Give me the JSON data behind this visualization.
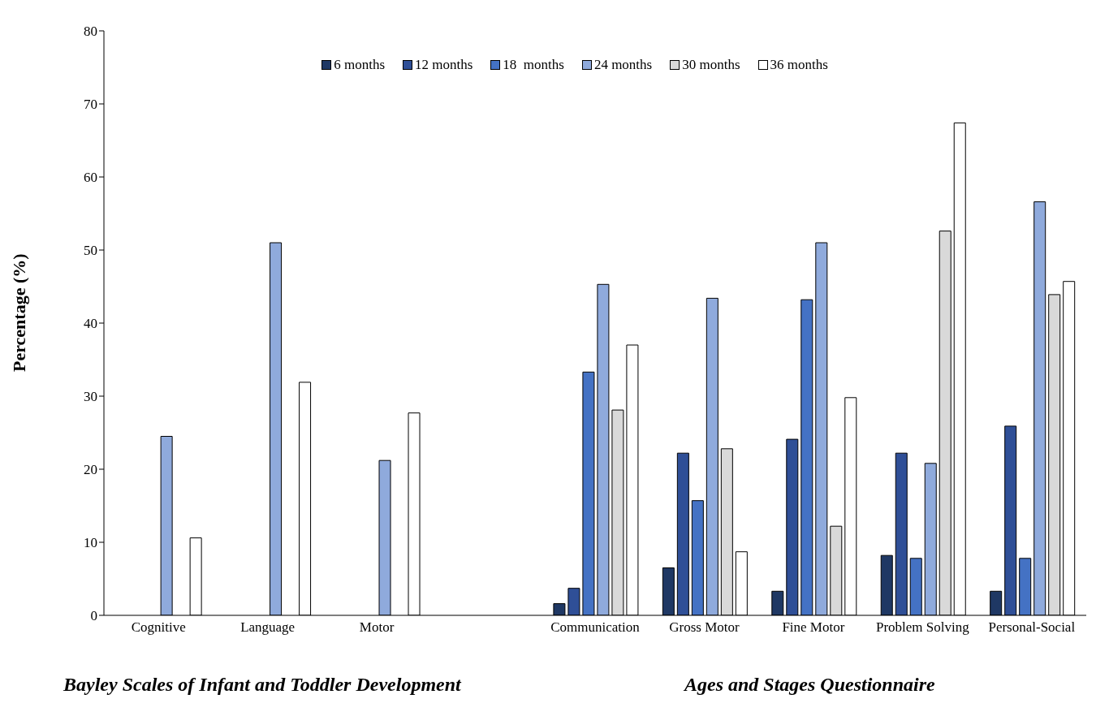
{
  "chart_data": {
    "type": "bar",
    "ylabel": "Percentage (%)",
    "categories": [
      "Cognitive",
      "Language",
      "Motor",
      null,
      "Communication",
      "Gross Motor",
      "Fine Motor",
      "Problem Solving",
      "Personal-Social"
    ],
    "series": [
      {
        "name": "6 months",
        "color": "#1f3864",
        "values": [
          null,
          null,
          null,
          null,
          1.6,
          6.5,
          3.3,
          8.2,
          3.3
        ]
      },
      {
        "name": "12 months",
        "color": "#2f4f97",
        "values": [
          null,
          null,
          null,
          null,
          3.7,
          22.2,
          24.1,
          22.2,
          25.9
        ]
      },
      {
        "name": "18  months",
        "color": "#4472c4",
        "values": [
          null,
          null,
          null,
          null,
          33.3,
          15.7,
          43.2,
          7.8,
          7.8
        ]
      },
      {
        "name": "24 months",
        "color": "#8faadc",
        "values": [
          24.5,
          51,
          21.2,
          null,
          45.3,
          43.4,
          51,
          20.8,
          56.6
        ]
      },
      {
        "name": "30 months",
        "color": "#d9d9d9",
        "values": [
          null,
          null,
          null,
          null,
          28.1,
          22.8,
          12.2,
          52.6,
          43.9
        ]
      },
      {
        "name": "36 months",
        "color": "#ffffff",
        "values": [
          10.6,
          31.9,
          27.7,
          null,
          37,
          8.7,
          29.8,
          67.4,
          45.7
        ]
      }
    ],
    "ylim": [
      0,
      80
    ],
    "yticks": [
      0,
      10,
      20,
      30,
      40,
      50,
      60,
      70,
      80
    ],
    "grid": false,
    "legend": "top",
    "annotations": [
      "Bayley Scales of Infant and Toddler Development",
      "Ages and Stages Questionnaire"
    ]
  }
}
